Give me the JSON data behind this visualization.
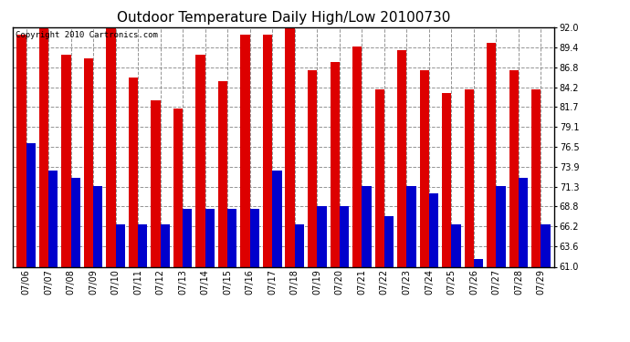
{
  "title": "Outdoor Temperature Daily High/Low 20100730",
  "copyright": "Copyright 2010 Cartronics.com",
  "dates": [
    "07/06",
    "07/07",
    "07/08",
    "07/09",
    "07/10",
    "07/11",
    "07/12",
    "07/13",
    "07/14",
    "07/15",
    "07/16",
    "07/17",
    "07/18",
    "07/19",
    "07/20",
    "07/21",
    "07/22",
    "07/23",
    "07/24",
    "07/25",
    "07/26",
    "07/27",
    "07/28",
    "07/29"
  ],
  "highs": [
    91.0,
    92.0,
    88.5,
    88.0,
    92.0,
    85.5,
    82.5,
    81.5,
    88.5,
    85.0,
    91.0,
    91.0,
    92.5,
    86.5,
    87.5,
    89.5,
    84.0,
    89.0,
    86.5,
    83.5,
    84.0,
    90.0,
    86.5,
    84.0
  ],
  "lows": [
    77.0,
    73.5,
    72.5,
    71.5,
    66.5,
    66.5,
    66.5,
    68.5,
    68.5,
    68.5,
    68.5,
    73.5,
    66.5,
    68.8,
    68.8,
    71.5,
    67.5,
    71.5,
    70.5,
    66.5,
    62.0,
    71.5,
    72.5,
    66.5
  ],
  "high_color": "#dd0000",
  "low_color": "#0000cc",
  "background_color": "#ffffff",
  "plot_bg_color": "#ffffff",
  "grid_color": "#888888",
  "yticks": [
    61.0,
    63.6,
    66.2,
    68.8,
    71.3,
    73.9,
    76.5,
    79.1,
    81.7,
    84.2,
    86.8,
    89.4,
    92.0
  ],
  "ymin": 61.0,
  "ymax": 92.0,
  "bar_width": 0.42,
  "title_fontsize": 11,
  "tick_fontsize": 7,
  "copyright_fontsize": 6.5
}
